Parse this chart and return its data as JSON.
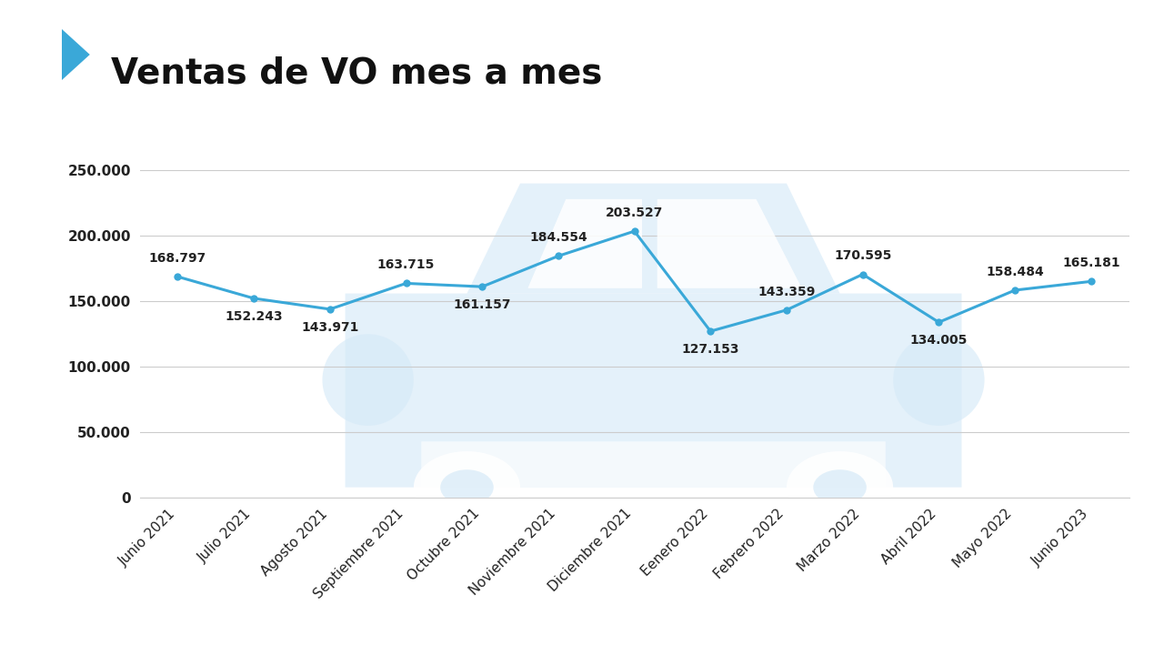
{
  "title": "Ventas de VO mes a mes",
  "categories": [
    "Junio 2021",
    "Julio 2021",
    "Agosto 2021",
    "Septiembre 2021",
    "Octubre 2021",
    "Noviembre 2021",
    "Diciembre 2021",
    "Eenero 2022",
    "Febrero 2022",
    "Marzo 2022",
    "Abril 2022",
    "Mayo 2022",
    "Junio 2023"
  ],
  "values": [
    168797,
    152243,
    143971,
    163715,
    161157,
    184554,
    203527,
    127153,
    143359,
    170595,
    134005,
    158484,
    165181
  ],
  "labels": [
    "168.797",
    "152.243",
    "143.971",
    "163.715",
    "161.157",
    "184.554",
    "203.527",
    "127.153",
    "143.359",
    "170.595",
    "134.005",
    "158.484",
    "165.181"
  ],
  "label_offsets_y": [
    14000,
    -14000,
    -14000,
    14000,
    -14000,
    14000,
    14000,
    -14000,
    14000,
    14000,
    -14000,
    14000,
    14000
  ],
  "line_color": "#3aa8d8",
  "marker_color": "#3aa8d8",
  "bg_color": "#ffffff",
  "grid_color": "#cccccc",
  "title_color": "#111111",
  "axis_color": "#222222",
  "arrow_color": "#3aa8d8",
  "car_color": "#d6eaf8",
  "ylim": [
    0,
    270000
  ],
  "yticks": [
    0,
    50000,
    100000,
    150000,
    200000,
    250000
  ],
  "ytick_labels": [
    "0",
    "50.000",
    "100.000",
    "150.000",
    "200.000",
    "250.000"
  ],
  "title_fontsize": 28,
  "label_fontsize": 10,
  "tick_fontsize": 11
}
